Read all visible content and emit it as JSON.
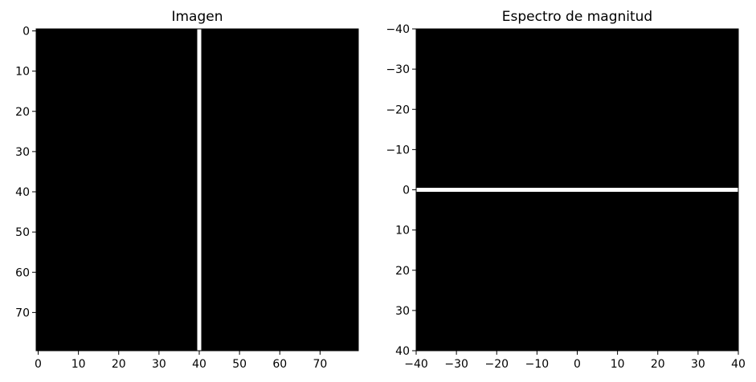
{
  "chart_data": [
    {
      "type": "heatmap",
      "title": "Imagen",
      "colormap": "gray",
      "background_value": "#000000",
      "xlim": [
        0,
        80
      ],
      "ylim": [
        80,
        0
      ],
      "y_inverted": true,
      "xticks": [
        0,
        10,
        20,
        30,
        40,
        50,
        60,
        70
      ],
      "yticks": [
        0,
        10,
        20,
        30,
        40,
        50,
        60,
        70
      ],
      "xticklabels": [
        "0",
        "10",
        "20",
        "30",
        "40",
        "50",
        "60",
        "70"
      ],
      "yticklabels": [
        "0",
        "10",
        "20",
        "30",
        "40",
        "50",
        "60",
        "70"
      ],
      "features": [
        {
          "kind": "vertical_line",
          "x": 40,
          "color": "#ffffff"
        }
      ]
    },
    {
      "type": "heatmap",
      "title": "Espectro de magnitud",
      "colormap": "gray",
      "background_value": "#000000",
      "xlim": [
        -40,
        40
      ],
      "ylim": [
        40,
        -40
      ],
      "y_inverted": true,
      "xticks": [
        -40,
        -30,
        -20,
        -10,
        0,
        10,
        20,
        30,
        40
      ],
      "yticks": [
        -40,
        -30,
        -20,
        -10,
        0,
        10,
        20,
        30,
        40
      ],
      "xticklabels": [
        "−40",
        "−30",
        "−20",
        "−10",
        "0",
        "10",
        "20",
        "30",
        "40"
      ],
      "yticklabels": [
        "−40",
        "−30",
        "−20",
        "−10",
        "0",
        "10",
        "20",
        "30",
        "40"
      ],
      "features": [
        {
          "kind": "horizontal_line",
          "y": 0,
          "color": "#ffffff"
        }
      ]
    }
  ]
}
